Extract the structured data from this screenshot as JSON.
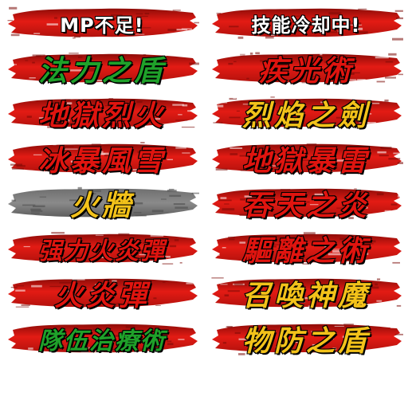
{
  "colors": {
    "brush_red": "#e31b14",
    "brush_dark": "#8e0c08",
    "brush_gray": "#8a8a8a",
    "text_green": "#1fa12a",
    "text_gold": "#f3c21a",
    "text_red": "#e0140f",
    "text_white": "#ffffff",
    "outline": "#111111"
  },
  "left_column": [
    {
      "text": "MP不足!",
      "color": "white",
      "brush": "red"
    },
    {
      "text": "法力之盾",
      "color": "green",
      "brush": "red"
    },
    {
      "text": "地獄烈火",
      "color": "red",
      "brush": "red"
    },
    {
      "text": "冰暴風雪",
      "color": "red",
      "brush": "red"
    },
    {
      "text": "火牆",
      "color": "gold",
      "brush": "gray"
    },
    {
      "text": "强力火炎彈",
      "color": "red",
      "brush": "red"
    },
    {
      "text": "火炎彈",
      "color": "red",
      "brush": "red"
    },
    {
      "text": "隊伍治療術",
      "color": "green",
      "brush": "red"
    }
  ],
  "right_column": [
    {
      "text": "技能冷却中!",
      "color": "white",
      "brush": "red"
    },
    {
      "text": "疾光術",
      "color": "red",
      "brush": "red"
    },
    {
      "text": "烈焰之劍",
      "color": "gold",
      "brush": "red"
    },
    {
      "text": "地獄暴雷",
      "color": "red",
      "brush": "red"
    },
    {
      "text": "吞天之炎",
      "color": "red",
      "brush": "red"
    },
    {
      "text": "驅離之術",
      "color": "red",
      "brush": "red"
    },
    {
      "text": "召喚神魔",
      "color": "gold",
      "brush": "red"
    },
    {
      "text": "物防之盾",
      "color": "gold",
      "brush": "red"
    }
  ]
}
